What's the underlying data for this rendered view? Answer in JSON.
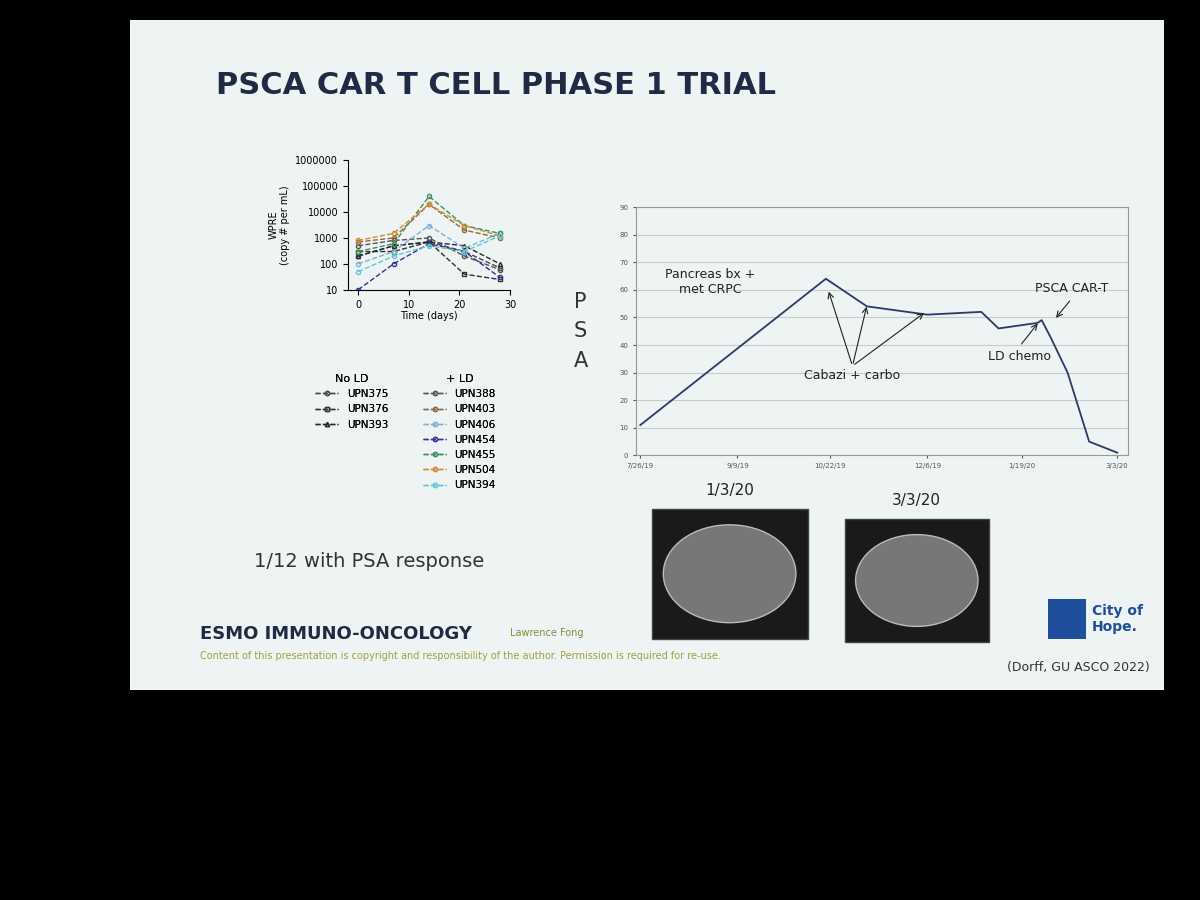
{
  "slide": {
    "title": "PSCA CAR T CELL PHASE 1 TRIAL",
    "response_note": "1/12 with PSA response",
    "congress": "ESMO IMMUNO-ONCOLOGY",
    "speaker": "Lawrence Fong",
    "copyright": "Content of this presentation is copyright and responsibility of the author. Permission is required for re-use.",
    "source": "(Dorff, GU ASCO 2022)",
    "logo": "City of\nHope.",
    "images": [
      {
        "label": "1/3/20"
      },
      {
        "label": "3/3/20"
      }
    ]
  },
  "chart_data": [
    {
      "type": "line",
      "log": "y",
      "xlabel": "Time (days)",
      "ylabel": "WPRE\n(copy # per mL)",
      "x": [
        0,
        7,
        14,
        21,
        28
      ],
      "xlim": [
        -2,
        30
      ],
      "xticks": [
        0,
        10,
        20,
        30
      ],
      "ylim": [
        10,
        1000000
      ],
      "yticks": [
        10,
        100,
        1000,
        10000,
        100000,
        1000000
      ],
      "series": [
        {
          "name": "UPN375",
          "group": "No LD",
          "color": "#4a4a4a",
          "marker": "circle",
          "line_style": "dashed",
          "values": [
            200,
            500,
            700,
            300,
            70
          ]
        },
        {
          "name": "UPN376",
          "group": "No LD",
          "color": "#333333",
          "marker": "square",
          "line_style": "dashed",
          "values": [
            300,
            300,
            700,
            40,
            25
          ]
        },
        {
          "name": "UPN393",
          "group": "No LD",
          "color": "#2a2a2a",
          "marker": "triangle",
          "line_style": "dashed",
          "values": [
            200,
            500,
            700,
            500,
            100
          ]
        },
        {
          "name": "UPN388",
          "group": "+ LD",
          "color": "#555555",
          "marker": "circle",
          "line_style": "dashed",
          "values": [
            500,
            800,
            1000,
            200,
            60
          ]
        },
        {
          "name": "UPN403",
          "group": "+ LD",
          "color": "#8b6a3e",
          "marker": "circle",
          "line_style": "dashed",
          "values": [
            700,
            1000,
            20000,
            2000,
            1000
          ]
        },
        {
          "name": "UPN406",
          "group": "+ LD",
          "color": "#7fb3d5",
          "marker": "circle",
          "line_style": "dashed",
          "values": [
            100,
            300,
            3000,
            400,
            1500
          ]
        },
        {
          "name": "UPN454",
          "group": "+ LD",
          "color": "#3b2f8f",
          "marker": "circle",
          "line_style": "dashed",
          "values": [
            10,
            100,
            600,
            300,
            30
          ]
        },
        {
          "name": "UPN455",
          "group": "+ LD",
          "color": "#3e8e5e",
          "marker": "circle",
          "line_style": "dashed",
          "values": [
            300,
            600,
            40000,
            3000,
            1500
          ]
        },
        {
          "name": "UPN504",
          "group": "+ LD",
          "color": "#d08a2e",
          "marker": "circle",
          "line_style": "dashed",
          "values": [
            800,
            1500,
            20000,
            3000,
            1200
          ]
        },
        {
          "name": "UPN394",
          "group": "+ LD",
          "color": "#5ec8d8",
          "marker": "circle",
          "line_style": "dashed",
          "values": [
            50,
            200,
            500,
            300,
            1200
          ]
        }
      ]
    },
    {
      "type": "line",
      "ylabel": "PSA",
      "grid": true,
      "color": "#2b3a67",
      "x": [
        "2019-07-26",
        "2019-10-20",
        "2019-11-08",
        "2019-12-06",
        "2019-12-31",
        "2020-01-08",
        "2020-01-26",
        "2020-01-28",
        "2020-02-01",
        "2020-02-09",
        "2020-02-19",
        "2020-03-03"
      ],
      "values": [
        11,
        64,
        54,
        51,
        52,
        46,
        48,
        49,
        43,
        30,
        5,
        1
      ],
      "xlim": [
        "2019-07-24",
        "2020-03-08"
      ],
      "xticks": [
        {
          "value": "2019-07-26",
          "label": "7/26/19"
        },
        {
          "value": "2019-09-09",
          "label": "9/9/19"
        },
        {
          "value": "2019-10-22",
          "label": "10/22/19"
        },
        {
          "value": "2019-12-06",
          "label": "12/6/19"
        },
        {
          "value": "2020-01-19",
          "label": "1/19/20"
        },
        {
          "value": "2020-03-03",
          "label": "3/3/20"
        }
      ],
      "ylim": [
        0,
        90
      ],
      "yticks": [
        0,
        10,
        20,
        30,
        40,
        50,
        60,
        70,
        80,
        90
      ],
      "annotations": [
        "Pancreas bx +\nmet CRPC",
        "Cabazi + carbo",
        "LD chemo",
        "PSCA CAR-T"
      ]
    }
  ]
}
